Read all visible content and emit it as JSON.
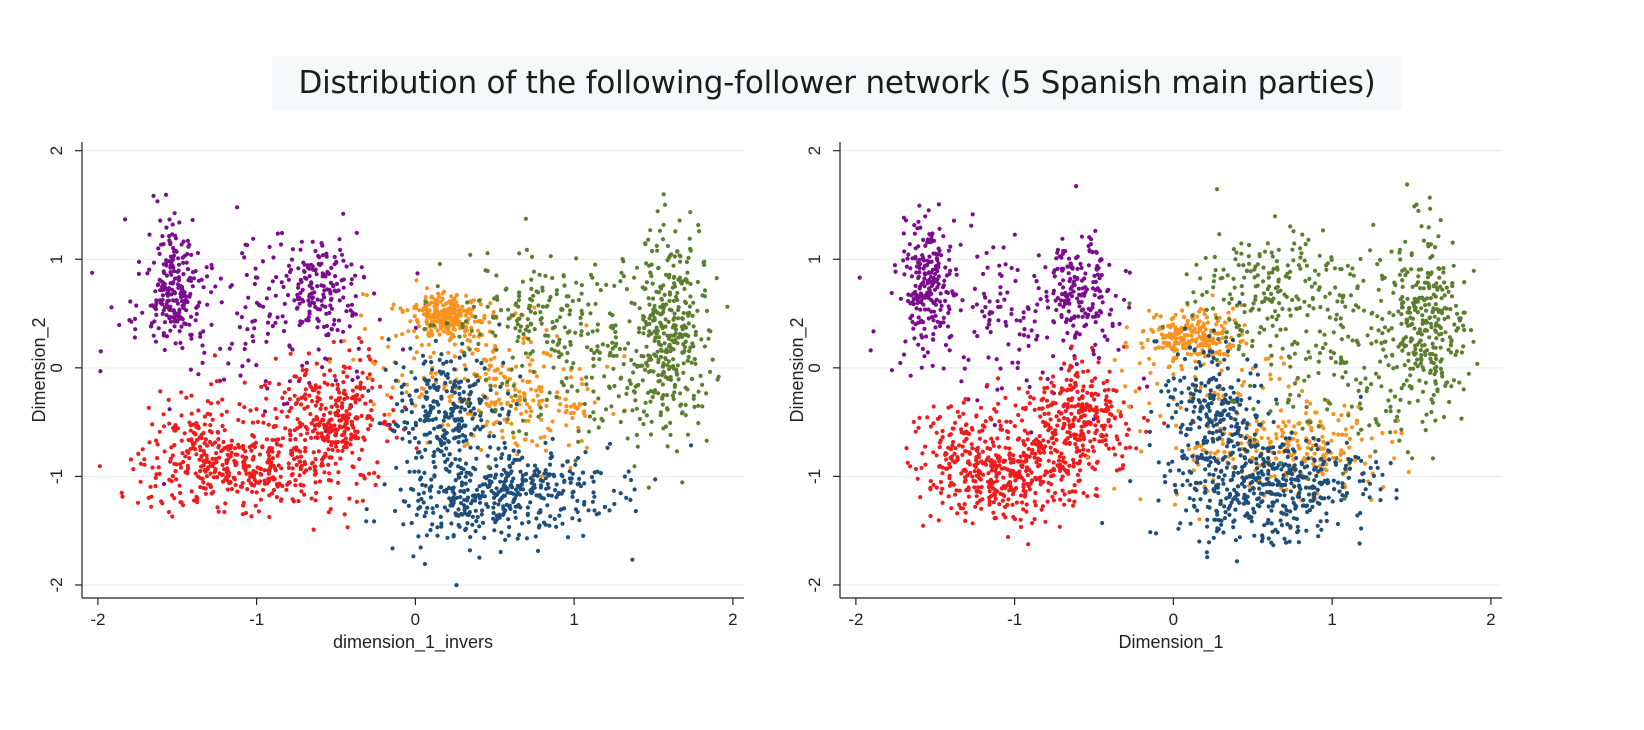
{
  "title": "Distribution of the following-follower network (5 Spanish  main parties)",
  "colors": {
    "purple": "#7b0d8e",
    "red": "#ee1c1c",
    "orange": "#f7931e",
    "blue": "#1f4e79",
    "green": "#5c7f2f"
  },
  "chart_data": [
    {
      "type": "scatter",
      "xlabel": "dimension_1_invers",
      "ylabel": "Dimension_2",
      "xlim": [
        -2.1,
        2.07
      ],
      "ylim": [
        -2.12,
        2.08
      ],
      "xticks": [
        -2,
        -1,
        0,
        1,
        2
      ],
      "yticks": [
        -2,
        -1,
        0,
        1,
        2
      ],
      "grid": true,
      "clusters": [
        {
          "color": "purple",
          "n": 520,
          "ellipses": [
            {
              "cx": -1.52,
              "cy": 0.75,
              "sx": 0.08,
              "sy": 0.28,
              "w": 0.4
            },
            {
              "cx": -0.62,
              "cy": 0.72,
              "sx": 0.12,
              "sy": 0.25,
              "w": 0.3
            },
            {
              "cx": -1.0,
              "cy": 0.45,
              "sx": 0.42,
              "sy": 0.42,
              "w": 0.3
            }
          ]
        },
        {
          "color": "red",
          "n": 780,
          "ellipses": [
            {
              "cx": -1.05,
              "cy": -0.95,
              "sx": 0.3,
              "sy": 0.18,
              "w": 0.45
            },
            {
              "cx": -0.55,
              "cy": -0.45,
              "sx": 0.18,
              "sy": 0.28,
              "w": 0.4
            },
            {
              "cx": -1.35,
              "cy": -0.65,
              "sx": 0.18,
              "sy": 0.2,
              "w": 0.15
            }
          ]
        },
        {
          "color": "orange",
          "n": 520,
          "ellipses": [
            {
              "cx": 0.18,
              "cy": 0.48,
              "sx": 0.12,
              "sy": 0.1,
              "w": 0.45
            },
            {
              "cx": 0.65,
              "cy": -0.25,
              "sx": 0.28,
              "sy": 0.25,
              "w": 0.35
            },
            {
              "cx": 0.2,
              "cy": 0.15,
              "sx": 0.3,
              "sy": 0.28,
              "w": 0.2
            }
          ]
        },
        {
          "color": "blue",
          "n": 700,
          "ellipses": [
            {
              "cx": 0.2,
              "cy": -0.45,
              "sx": 0.18,
              "sy": 0.3,
              "w": 0.4
            },
            {
              "cx": 0.65,
              "cy": -1.15,
              "sx": 0.3,
              "sy": 0.2,
              "w": 0.45
            },
            {
              "cx": 0.2,
              "cy": -1.3,
              "sx": 0.2,
              "sy": 0.25,
              "w": 0.15
            }
          ]
        },
        {
          "color": "green",
          "n": 660,
          "ellipses": [
            {
              "cx": 1.6,
              "cy": 0.4,
              "sx": 0.12,
              "sy": 0.45,
              "w": 0.45
            },
            {
              "cx": 0.75,
              "cy": 0.5,
              "sx": 0.3,
              "sy": 0.3,
              "w": 0.3
            },
            {
              "cx": 1.2,
              "cy": -0.1,
              "sx": 0.3,
              "sy": 0.35,
              "w": 0.25
            }
          ]
        }
      ]
    },
    {
      "type": "scatter",
      "xlabel": "Dimension_1",
      "ylabel": "Dimension_2",
      "xlim": [
        -2.1,
        2.07
      ],
      "ylim": [
        -2.12,
        2.08
      ],
      "xticks": [
        -2,
        -1,
        0,
        1,
        2
      ],
      "yticks": [
        -2,
        -1,
        0,
        1,
        2
      ],
      "grid": true,
      "clusters": [
        {
          "color": "purple",
          "n": 520,
          "ellipses": [
            {
              "cx": -1.55,
              "cy": 0.8,
              "sx": 0.08,
              "sy": 0.3,
              "w": 0.4
            },
            {
              "cx": -0.6,
              "cy": 0.75,
              "sx": 0.12,
              "sy": 0.22,
              "w": 0.3
            },
            {
              "cx": -1.05,
              "cy": 0.45,
              "sx": 0.4,
              "sy": 0.42,
              "w": 0.3
            }
          ]
        },
        {
          "color": "red",
          "n": 780,
          "ellipses": [
            {
              "cx": -1.05,
              "cy": -1.0,
              "sx": 0.25,
              "sy": 0.2,
              "w": 0.45
            },
            {
              "cx": -0.6,
              "cy": -0.5,
              "sx": 0.18,
              "sy": 0.28,
              "w": 0.4
            },
            {
              "cx": -1.3,
              "cy": -0.7,
              "sx": 0.18,
              "sy": 0.2,
              "w": 0.15
            }
          ]
        },
        {
          "color": "orange",
          "n": 520,
          "ellipses": [
            {
              "cx": 0.12,
              "cy": 0.28,
              "sx": 0.14,
              "sy": 0.12,
              "w": 0.4
            },
            {
              "cx": 0.8,
              "cy": -0.75,
              "sx": 0.3,
              "sy": 0.18,
              "w": 0.35
            },
            {
              "cx": 0.3,
              "cy": -0.5,
              "sx": 0.35,
              "sy": 0.4,
              "w": 0.25
            }
          ]
        },
        {
          "color": "blue",
          "n": 700,
          "ellipses": [
            {
              "cx": 0.25,
              "cy": -0.45,
              "sx": 0.18,
              "sy": 0.3,
              "w": 0.4
            },
            {
              "cx": 0.7,
              "cy": -1.05,
              "sx": 0.3,
              "sy": 0.22,
              "w": 0.45
            },
            {
              "cx": 0.4,
              "cy": -1.35,
              "sx": 0.25,
              "sy": 0.18,
              "w": 0.15
            }
          ]
        },
        {
          "color": "green",
          "n": 660,
          "ellipses": [
            {
              "cx": 1.6,
              "cy": 0.45,
              "sx": 0.12,
              "sy": 0.42,
              "w": 0.4
            },
            {
              "cx": 0.65,
              "cy": 0.75,
              "sx": 0.3,
              "sy": 0.25,
              "w": 0.3
            },
            {
              "cx": 1.15,
              "cy": 0.0,
              "sx": 0.35,
              "sy": 0.4,
              "w": 0.3
            }
          ]
        }
      ]
    }
  ]
}
